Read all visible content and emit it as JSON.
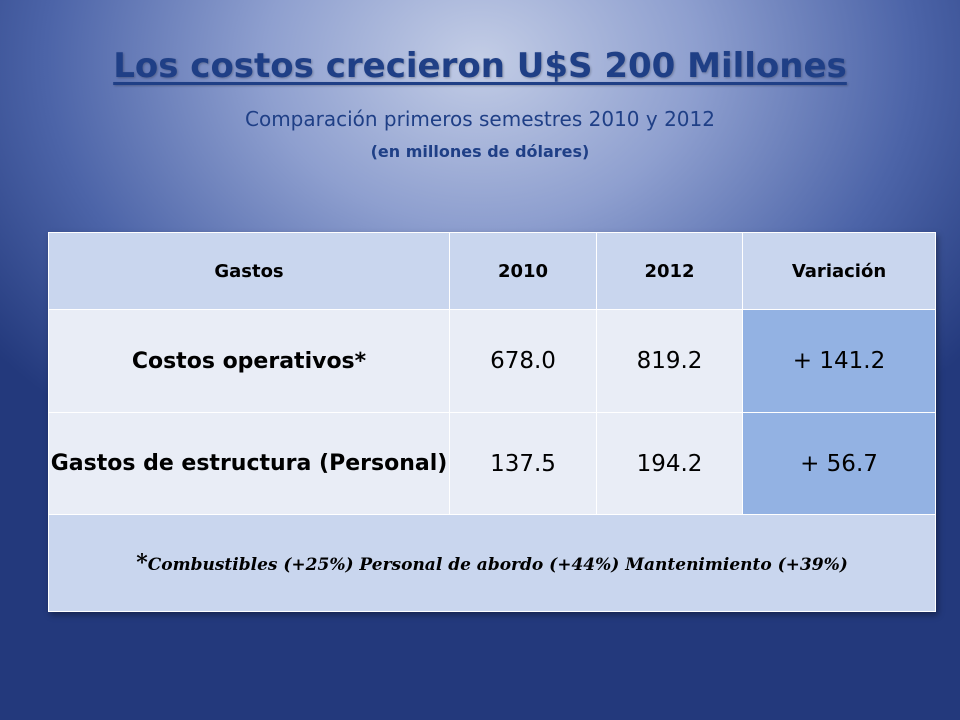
{
  "title": "Los costos crecieron U$S 200 Millones",
  "subtitle": "Comparación primeros  semestres  2010  y 2012",
  "unit_note": "(en millones de dólares)",
  "table": {
    "headers": [
      "Gastos",
      "2010",
      "2012",
      "Variación"
    ],
    "rows": [
      {
        "label": "Costos operativos*",
        "v2010": "678.0",
        "v2012": "819.2",
        "variation": "+ 141.2"
      },
      {
        "label": "Gastos de estructura (Personal)",
        "v2010": "137.5",
        "v2012": "194.2",
        "variation": "+ 56.7"
      }
    ],
    "footnote_star": "*",
    "footnote": "Combustibles (+25%) Personal de abordo (+44%) Mantenimiento (+39%)"
  },
  "colors": {
    "title": "#1f3f86",
    "header_bg": "#c9d6ee",
    "cell_bg": "#e9edf6",
    "variation_bg": "#93b2e3"
  }
}
